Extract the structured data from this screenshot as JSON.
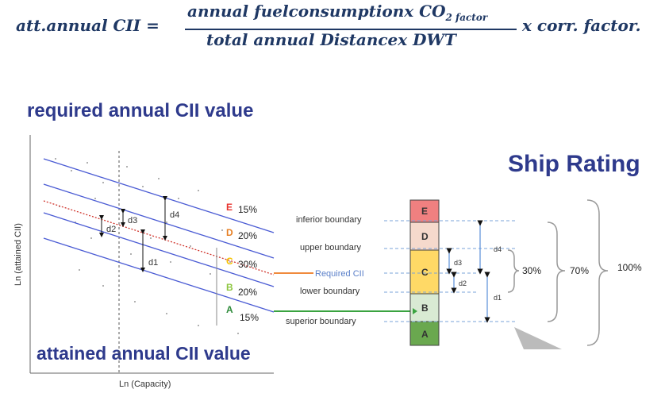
{
  "formula": {
    "lhs": "att.annual CII =",
    "numerator": "annual fuelconsumptionx CO",
    "numerator_sub": "2 factor",
    "denominator": "total annual Distancex DWT",
    "rhs": "x corr. factor."
  },
  "headings": {
    "required": "required annual CII value",
    "attained": "attained annual CII value",
    "ship_rating": "Ship Rating"
  },
  "left_chart": {
    "ylabel": "Ln (attained CII)",
    "xlabel": "Ln (Capacity)",
    "distance_labels": [
      "d3",
      "d2",
      "d4",
      "d1"
    ],
    "grades": [
      {
        "letter": "E",
        "pct": "15%",
        "color": "#e8322d"
      },
      {
        "letter": "D",
        "pct": "20%",
        "color": "#e67e22"
      },
      {
        "letter": "C",
        "pct": "30%",
        "color": "#f5c200"
      },
      {
        "letter": "B",
        "pct": "20%",
        "color": "#8dc63f"
      },
      {
        "letter": "A",
        "pct": "15%",
        "color": "#2e8b3a"
      }
    ]
  },
  "rating_bar": {
    "bands": [
      {
        "letter": "E",
        "color": "#f08080"
      },
      {
        "letter": "D",
        "color": "#f5d9cc"
      },
      {
        "letter": "C",
        "color": "#ffd966"
      },
      {
        "letter": "B",
        "color": "#d9ead3"
      },
      {
        "letter": "A",
        "color": "#6aa84f"
      }
    ],
    "boundaries": {
      "inferior": "inferior boundary",
      "upper": "upper boundary",
      "required": "Required CII",
      "lower": "lower boundary",
      "superior": "superior boundary"
    },
    "d_labels": [
      "d4",
      "d3",
      "d2",
      "d1"
    ],
    "percents": [
      "30%",
      "70%",
      "100%"
    ]
  }
}
